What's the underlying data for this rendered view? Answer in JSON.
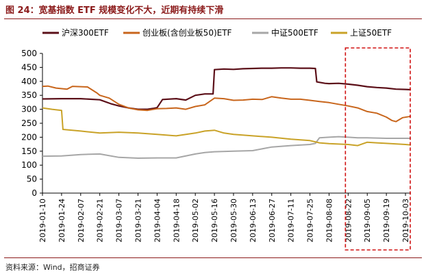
{
  "header": {
    "title": "图 24：宽基指数 ETF 规模变化不大，近期有持续下滑"
  },
  "footer": {
    "source": "资料来源：Wind，招商证券"
  },
  "chart_data": {
    "type": "line",
    "title": "图 24：宽基指数 ETF 规模变化不大，近期有持续下滑",
    "xlabel": "",
    "ylabel": "",
    "ylim": [
      0,
      500
    ],
    "yticks": [
      0,
      50,
      100,
      150,
      200,
      250,
      300,
      350,
      400,
      450,
      500
    ],
    "xlim": [
      "2019-01-10",
      "2019-10-07"
    ],
    "xticks": [
      "2019-01-10",
      "2019-01-24",
      "2019-02-07",
      "2019-02-21",
      "2019-03-07",
      "2019-03-21",
      "2019-04-04",
      "2019-04-18",
      "2019-05-02",
      "2019-05-16",
      "2019-05-30",
      "2019-06-13",
      "2019-06-27",
      "2019-07-11",
      "2019-07-25",
      "2019-08-08",
      "2019-08-22",
      "2019-09-05",
      "2019-09-19",
      "2019-10-03"
    ],
    "grid": false,
    "legend_position": "top",
    "highlight_box": {
      "from": "2019-08-22",
      "to": "2019-10-07",
      "style": "red dashed"
    },
    "series": [
      {
        "name": "沪深300ETF",
        "color": "#5b0f18",
        "points": [
          [
            "2019-01-10",
            337
          ],
          [
            "2019-01-24",
            338
          ],
          [
            "2019-02-07",
            338
          ],
          [
            "2019-02-21",
            334
          ],
          [
            "2019-03-01",
            320
          ],
          [
            "2019-03-07",
            312
          ],
          [
            "2019-03-14",
            305
          ],
          [
            "2019-03-21",
            300
          ],
          [
            "2019-03-28",
            300
          ],
          [
            "2019-04-01",
            303
          ],
          [
            "2019-04-04",
            306
          ],
          [
            "2019-04-08",
            335
          ],
          [
            "2019-04-18",
            338
          ],
          [
            "2019-04-25",
            333
          ],
          [
            "2019-05-02",
            350
          ],
          [
            "2019-05-09",
            355
          ],
          [
            "2019-05-15",
            355
          ],
          [
            "2019-05-16",
            442
          ],
          [
            "2019-05-23",
            444
          ],
          [
            "2019-05-30",
            443
          ],
          [
            "2019-06-06",
            445
          ],
          [
            "2019-06-13",
            446
          ],
          [
            "2019-06-20",
            447
          ],
          [
            "2019-06-27",
            447
          ],
          [
            "2019-07-04",
            448
          ],
          [
            "2019-07-11",
            448
          ],
          [
            "2019-07-18",
            447
          ],
          [
            "2019-07-25",
            447
          ],
          [
            "2019-07-29",
            446
          ],
          [
            "2019-07-30",
            398
          ],
          [
            "2019-08-05",
            393
          ],
          [
            "2019-08-08",
            392
          ],
          [
            "2019-08-15",
            393
          ],
          [
            "2019-08-22",
            390
          ],
          [
            "2019-08-29",
            386
          ],
          [
            "2019-09-05",
            381
          ],
          [
            "2019-09-12",
            378
          ],
          [
            "2019-09-19",
            376
          ],
          [
            "2019-09-26",
            372
          ],
          [
            "2019-10-03",
            371
          ],
          [
            "2019-10-07",
            370
          ]
        ]
      },
      {
        "name": "创业板(含创业板50)ETF",
        "color": "#c8651b",
        "points": [
          [
            "2019-01-10",
            382
          ],
          [
            "2019-01-14",
            383
          ],
          [
            "2019-01-20",
            376
          ],
          [
            "2019-01-28",
            372
          ],
          [
            "2019-02-01",
            382
          ],
          [
            "2019-02-12",
            380
          ],
          [
            "2019-02-19",
            358
          ],
          [
            "2019-02-21",
            350
          ],
          [
            "2019-02-28",
            340
          ],
          [
            "2019-03-07",
            318
          ],
          [
            "2019-03-14",
            305
          ],
          [
            "2019-03-21",
            298
          ],
          [
            "2019-03-28",
            296
          ],
          [
            "2019-04-04",
            302
          ],
          [
            "2019-04-11",
            303
          ],
          [
            "2019-04-18",
            305
          ],
          [
            "2019-04-25",
            300
          ],
          [
            "2019-05-02",
            310
          ],
          [
            "2019-05-09",
            316
          ],
          [
            "2019-05-16",
            340
          ],
          [
            "2019-05-23",
            338
          ],
          [
            "2019-05-30",
            332
          ],
          [
            "2019-06-06",
            333
          ],
          [
            "2019-06-13",
            336
          ],
          [
            "2019-06-20",
            335
          ],
          [
            "2019-06-27",
            345
          ],
          [
            "2019-07-04",
            340
          ],
          [
            "2019-07-11",
            336
          ],
          [
            "2019-07-18",
            336
          ],
          [
            "2019-07-25",
            332
          ],
          [
            "2019-08-01",
            328
          ],
          [
            "2019-08-08",
            324
          ],
          [
            "2019-08-15",
            318
          ],
          [
            "2019-08-22",
            312
          ],
          [
            "2019-08-29",
            305
          ],
          [
            "2019-09-05",
            292
          ],
          [
            "2019-09-12",
            286
          ],
          [
            "2019-09-19",
            272
          ],
          [
            "2019-09-23",
            260
          ],
          [
            "2019-09-26",
            256
          ],
          [
            "2019-10-01",
            270
          ],
          [
            "2019-10-07",
            275
          ]
        ]
      },
      {
        "name": "中证500ETF",
        "color": "#a6a6a6",
        "points": [
          [
            "2019-01-10",
            132
          ],
          [
            "2019-01-24",
            133
          ],
          [
            "2019-02-07",
            138
          ],
          [
            "2019-02-21",
            140
          ],
          [
            "2019-03-07",
            128
          ],
          [
            "2019-03-21",
            125
          ],
          [
            "2019-04-04",
            126
          ],
          [
            "2019-04-18",
            126
          ],
          [
            "2019-05-02",
            140
          ],
          [
            "2019-05-09",
            145
          ],
          [
            "2019-05-16",
            148
          ],
          [
            "2019-05-30",
            150
          ],
          [
            "2019-06-13",
            152
          ],
          [
            "2019-06-27",
            165
          ],
          [
            "2019-07-11",
            170
          ],
          [
            "2019-07-25",
            174
          ],
          [
            "2019-07-29",
            178
          ],
          [
            "2019-08-01",
            198
          ],
          [
            "2019-08-08",
            200
          ],
          [
            "2019-08-15",
            202
          ],
          [
            "2019-08-22",
            200
          ],
          [
            "2019-08-29",
            198
          ],
          [
            "2019-09-05",
            198
          ],
          [
            "2019-09-19",
            196
          ],
          [
            "2019-10-07",
            196
          ]
        ]
      },
      {
        "name": "上证50ETF",
        "color": "#c9a227",
        "points": [
          [
            "2019-01-10",
            305
          ],
          [
            "2019-01-17",
            300
          ],
          [
            "2019-01-24",
            296
          ],
          [
            "2019-01-25",
            228
          ],
          [
            "2019-02-07",
            222
          ],
          [
            "2019-02-21",
            215
          ],
          [
            "2019-03-07",
            218
          ],
          [
            "2019-03-21",
            215
          ],
          [
            "2019-04-04",
            210
          ],
          [
            "2019-04-18",
            205
          ],
          [
            "2019-05-02",
            215
          ],
          [
            "2019-05-09",
            222
          ],
          [
            "2019-05-16",
            225
          ],
          [
            "2019-05-23",
            215
          ],
          [
            "2019-05-30",
            210
          ],
          [
            "2019-06-13",
            205
          ],
          [
            "2019-06-27",
            200
          ],
          [
            "2019-07-11",
            193
          ],
          [
            "2019-07-25",
            188
          ],
          [
            "2019-08-01",
            180
          ],
          [
            "2019-08-08",
            177
          ],
          [
            "2019-08-22",
            174
          ],
          [
            "2019-08-29",
            170
          ],
          [
            "2019-09-05",
            182
          ],
          [
            "2019-09-12",
            180
          ],
          [
            "2019-09-19",
            178
          ],
          [
            "2019-10-03",
            174
          ],
          [
            "2019-10-07",
            172
          ]
        ]
      }
    ]
  }
}
